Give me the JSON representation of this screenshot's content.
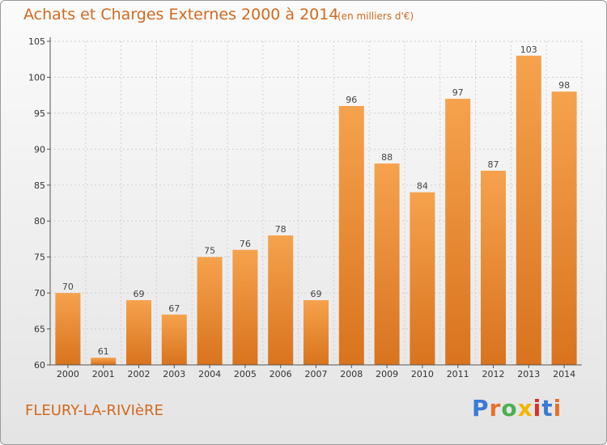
{
  "title": "Achats et Charges Externes 2000 à 2014",
  "subtitle": "(en milliers d'€)",
  "commune": "FLEURY-LA-RIVIèRE",
  "logo_text": "Proxiti",
  "logo_letter_colors": [
    "#3a7bd5",
    "#e8702a",
    "#4caf50",
    "#f4b400",
    "#d93025",
    "#3a7bd5",
    "#e8702a"
  ],
  "colors": {
    "title": "#d2691e",
    "bar_top": "#f6a24d",
    "bar_bottom": "#d9731e",
    "grid": "#cfcfcf"
  },
  "chart_data": {
    "type": "bar",
    "title": "Achats et Charges Externes 2000 à 2014",
    "subtitle": "(en milliers d'€)",
    "xlabel": "",
    "ylabel": "",
    "categories": [
      "2000",
      "2001",
      "2002",
      "2003",
      "2004",
      "2005",
      "2006",
      "2007",
      "2008",
      "2009",
      "2010",
      "2011",
      "2012",
      "2013",
      "2014"
    ],
    "values": [
      70,
      61,
      69,
      67,
      75,
      76,
      78,
      69,
      96,
      88,
      84,
      97,
      87,
      103,
      98
    ],
    "ylim": [
      60,
      105
    ],
    "yticks": [
      60,
      65,
      70,
      75,
      80,
      85,
      90,
      95,
      100,
      105
    ],
    "grid": true,
    "legend": "none"
  }
}
